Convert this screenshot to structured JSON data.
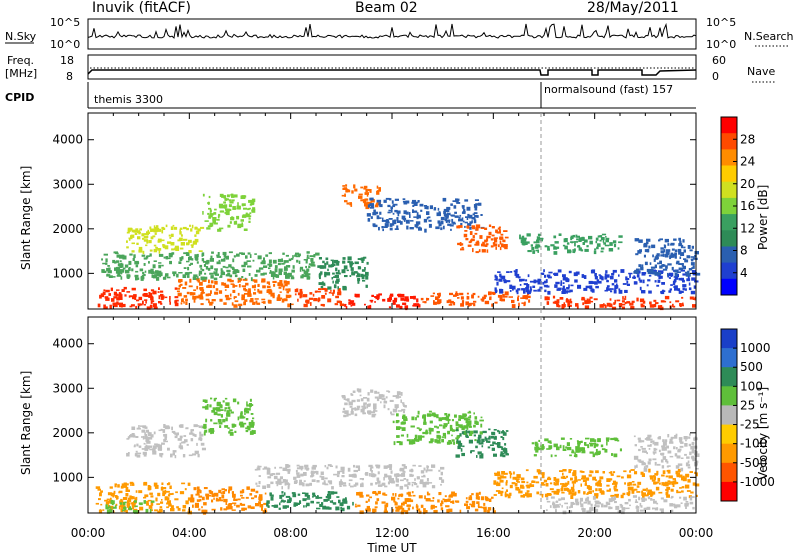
{
  "header": {
    "station": "Inuvik (fitACF)",
    "beam": "Beam 02",
    "date": "28/May/2011"
  },
  "top_panels": {
    "nsky_label": "N.Sky",
    "nsearch_label": "N.Search",
    "nsky_ticks": [
      "10^5",
      "10^0"
    ],
    "nsearch_ticks": [
      "10^5",
      "10^0"
    ],
    "freq_label_line1": "Freq.",
    "freq_label_line2": "[MHz]",
    "freq_ticks": [
      "18",
      "8"
    ],
    "nave_label": "Nave",
    "nave_ticks": [
      "60",
      "0"
    ],
    "cpid_label": "CPID",
    "cpid_left": "themis 3300",
    "cpid_right": "normalsound (fast) 157"
  },
  "chart_data": [
    {
      "type": "heatmap",
      "title": "",
      "ylabel": "Slant Range [km]",
      "xlabel": "",
      "ylim": [
        200,
        4600
      ],
      "yticks": [
        1000,
        2000,
        3000,
        4000
      ],
      "xlim": [
        0,
        24
      ],
      "colorbar_label": "Power [dB]",
      "colorbar_ticks": [
        "28",
        "24",
        "20",
        "16",
        "12",
        "8",
        "4"
      ],
      "colorbar_colors": [
        "#ff0000",
        "#ff4a00",
        "#ff8c00",
        "#ffcc00",
        "#d0e020",
        "#7ed23a",
        "#3aa060",
        "#2e8b57",
        "#2a5fb0",
        "#1f3fd0",
        "#0000ff"
      ],
      "patches": [
        {
          "t0": 0.3,
          "t1": 3.5,
          "r0": 250,
          "r1": 700,
          "c": "#ff2a00"
        },
        {
          "t0": 3.5,
          "t1": 8.0,
          "r0": 300,
          "r1": 900,
          "c": "#ff6a00"
        },
        {
          "t0": 8.0,
          "t1": 10.0,
          "r0": 300,
          "r1": 700,
          "c": "#ff4000"
        },
        {
          "t0": 10.0,
          "t1": 13.0,
          "r0": 250,
          "r1": 550,
          "c": "#ff1a00"
        },
        {
          "t0": 13.0,
          "t1": 17.5,
          "r0": 300,
          "r1": 600,
          "c": "#ff5500"
        },
        {
          "t0": 18.0,
          "t1": 24.0,
          "r0": 250,
          "r1": 500,
          "c": "#ff3300"
        },
        {
          "t0": 0.5,
          "t1": 9.0,
          "r0": 900,
          "r1": 1500,
          "c": "#4aa55a"
        },
        {
          "t0": 9.0,
          "t1": 11.0,
          "r0": 700,
          "r1": 1400,
          "c": "#2e8b57"
        },
        {
          "t0": 10.0,
          "t1": 11.5,
          "r0": 2500,
          "r1": 3000,
          "c": "#ff6a00"
        },
        {
          "t0": 11.0,
          "t1": 15.5,
          "r0": 2000,
          "r1": 2700,
          "c": "#2a5fb0"
        },
        {
          "t0": 14.5,
          "t1": 16.5,
          "r0": 1500,
          "r1": 2100,
          "c": "#ff5a00"
        },
        {
          "t0": 17.0,
          "t1": 21.0,
          "r0": 1500,
          "r1": 1900,
          "c": "#3aa060"
        },
        {
          "t0": 16.0,
          "t1": 24.0,
          "r0": 600,
          "r1": 1100,
          "c": "#1f3fd0"
        },
        {
          "t0": 1.5,
          "t1": 4.5,
          "r0": 1500,
          "r1": 2100,
          "c": "#d0e020"
        },
        {
          "t0": 4.5,
          "t1": 6.5,
          "r0": 2000,
          "r1": 2800,
          "c": "#7ed23a"
        },
        {
          "t0": 21.5,
          "t1": 24.0,
          "r0": 1000,
          "r1": 1800,
          "c": "#2a5fb0"
        }
      ]
    },
    {
      "type": "heatmap",
      "title": "",
      "ylabel": "Slant Range [km]",
      "xlabel": "Time UT",
      "ylim": [
        200,
        4600
      ],
      "yticks": [
        1000,
        2000,
        3000,
        4000
      ],
      "xlim": [
        0,
        24
      ],
      "xtick_labels": [
        "00:00",
        "04:00",
        "08:00",
        "12:00",
        "16:00",
        "20:00",
        "00:00"
      ],
      "colorbar_label": "Velocity [m s⁻¹]",
      "colorbar_ticks": [
        "1000",
        "500",
        "100",
        "25",
        "-25",
        "-100",
        "-500",
        "-1000"
      ],
      "colorbar_colors": [
        "#1a3fc8",
        "#2e6fd0",
        "#2e8b57",
        "#5fbf3a",
        "#b8b8b8",
        "#ffcc00",
        "#ff9a00",
        "#ff5500",
        "#ff0000"
      ],
      "patches": [
        {
          "t0": 0.3,
          "t1": 4.0,
          "r0": 250,
          "r1": 900,
          "c": "#ff9a00"
        },
        {
          "t0": 4.0,
          "t1": 7.0,
          "r0": 250,
          "r1": 800,
          "c": "#ff8800"
        },
        {
          "t0": 7.0,
          "t1": 10.5,
          "r0": 300,
          "r1": 700,
          "c": "#2e8b57"
        },
        {
          "t0": 6.5,
          "t1": 14.0,
          "r0": 800,
          "r1": 1300,
          "c": "#c0c0c0"
        },
        {
          "t0": 10.5,
          "t1": 16.0,
          "r0": 250,
          "r1": 700,
          "c": "#ff8c00"
        },
        {
          "t0": 16.0,
          "t1": 24.0,
          "r0": 600,
          "r1": 1200,
          "c": "#ff9a00"
        },
        {
          "t0": 18.0,
          "t1": 24.0,
          "r0": 250,
          "r1": 600,
          "c": "#c0c0c0"
        },
        {
          "t0": 10.0,
          "t1": 12.5,
          "r0": 2400,
          "r1": 3000,
          "c": "#c0c0c0"
        },
        {
          "t0": 12.0,
          "t1": 15.5,
          "r0": 1800,
          "r1": 2500,
          "c": "#5fbf3a"
        },
        {
          "t0": 14.5,
          "t1": 16.5,
          "r0": 1500,
          "r1": 2100,
          "c": "#2e8b57"
        },
        {
          "t0": 17.5,
          "t1": 21.0,
          "r0": 1500,
          "r1": 1900,
          "c": "#5fbf3a"
        },
        {
          "t0": 1.5,
          "t1": 4.5,
          "r0": 1500,
          "r1": 2200,
          "c": "#c0c0c0"
        },
        {
          "t0": 4.5,
          "t1": 6.5,
          "r0": 2000,
          "r1": 2800,
          "c": "#5fbf3a"
        },
        {
          "t0": 21.5,
          "t1": 24.0,
          "r0": 1200,
          "r1": 2000,
          "c": "#c0c0c0"
        },
        {
          "t0": 0.5,
          "t1": 2.5,
          "r0": 250,
          "r1": 500,
          "c": "#5fbf3a"
        }
      ]
    }
  ]
}
